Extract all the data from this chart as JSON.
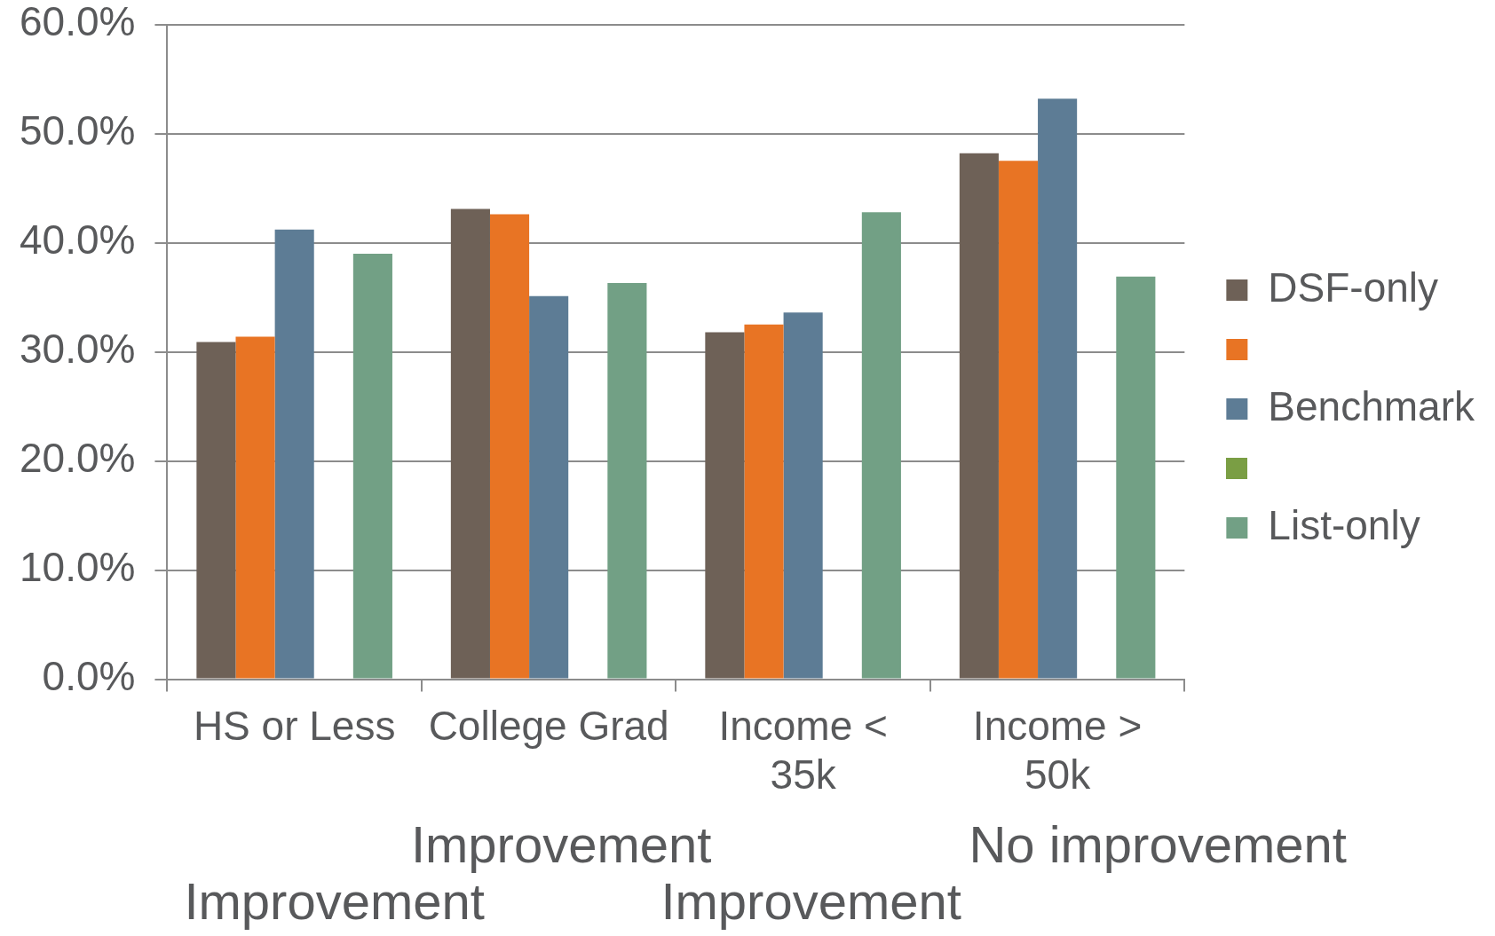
{
  "chart_data": {
    "type": "bar",
    "categories": [
      "HS or Less",
      "College Grad",
      "Income < 35k",
      "Income > 50k"
    ],
    "series": [
      {
        "name": "DSF-only",
        "color": "#6e6157",
        "values": [
          30.9,
          43.1,
          31.8,
          48.2
        ]
      },
      {
        "color": "#e87424",
        "values": [
          31.4,
          42.6,
          32.5,
          47.5
        ]
      },
      {
        "name": "Benchmark",
        "color": "#5d7c95",
        "values": [
          41.2,
          35.1,
          33.6,
          53.2
        ]
      },
      {
        "color": "#7a9e44",
        "values": [
          null,
          null,
          null,
          null
        ]
      },
      {
        "name": "List-only",
        "color": "#72a085",
        "values": [
          39.0,
          36.3,
          42.8,
          36.9
        ]
      }
    ],
    "ylim": [
      0,
      60
    ],
    "yticks": [
      {
        "value": 0,
        "label": "0.0%"
      },
      {
        "value": 10,
        "label": "10.0%"
      },
      {
        "value": 20,
        "label": "20.0%"
      },
      {
        "value": 30,
        "label": "30.0%"
      },
      {
        "value": 40,
        "label": "40.0%"
      },
      {
        "value": 50,
        "label": "50.0%"
      },
      {
        "value": 60,
        "label": "60.0%"
      }
    ],
    "grid": "y",
    "legend": "right",
    "annotations": [
      "Improvement",
      "Improvement",
      "Improvement",
      "No improvement"
    ]
  }
}
